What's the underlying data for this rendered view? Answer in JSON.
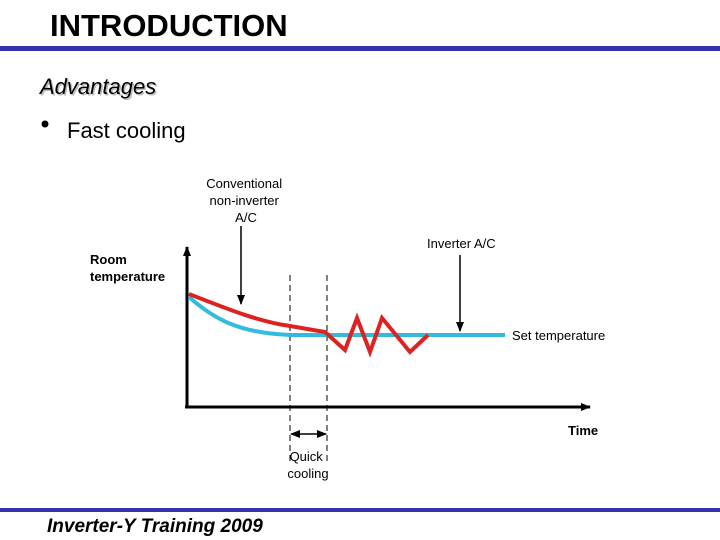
{
  "header": {
    "title": "INTRODUCTION"
  },
  "section": {
    "heading": "Advantages",
    "bullets": [
      "Fast cooling"
    ]
  },
  "diagram": {
    "conventional_label": [
      "Conventional",
      "non-inverter",
      "A/C"
    ],
    "inverter_label": "Inverter A/C",
    "y_axis_label": [
      "Room",
      "temperature"
    ],
    "set_label": "Set temperature",
    "x_axis_label": "Time",
    "quick_label": [
      "Quick",
      "cooling"
    ]
  },
  "footer": {
    "text": "Inverter-Y Training 2009"
  }
}
